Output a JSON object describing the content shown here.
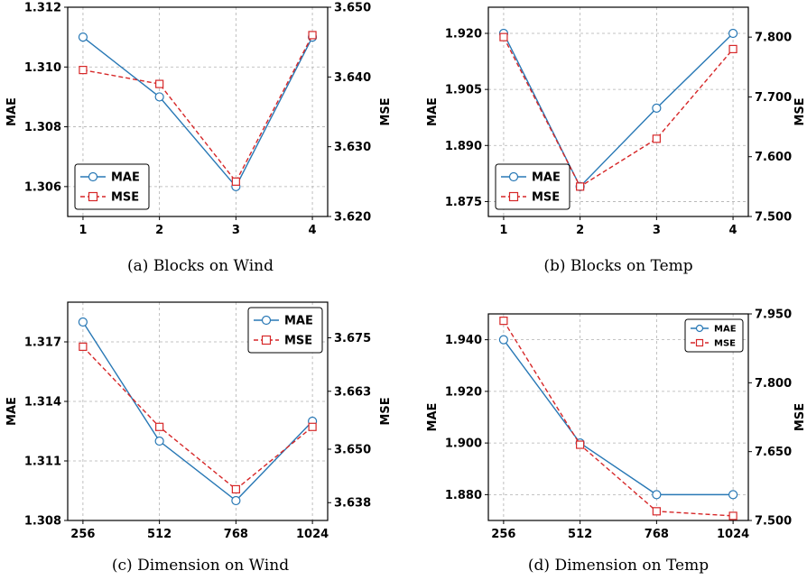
{
  "colors": {
    "mae": "#2878b5",
    "mse": "#d62728"
  },
  "chart_data": [
    {
      "type": "line",
      "caption": "(a)  Blocks on Wind",
      "x": [
        1,
        2,
        3,
        4
      ],
      "x_tick_labels": [
        "1",
        "2",
        "3",
        "4"
      ],
      "xlim": [
        0.8,
        4.2
      ],
      "ylabel": "MAE",
      "y2label": "MSE",
      "ylim": [
        1.305,
        1.312
      ],
      "y_ticks": [
        1.306,
        1.308,
        1.31,
        1.312
      ],
      "y_tick_labels": [
        "1.306",
        "1.308",
        "1.310",
        "1.312"
      ],
      "y2lim": [
        3.62,
        3.65
      ],
      "y2_ticks": [
        3.62,
        3.63,
        3.64,
        3.65
      ],
      "y2_tick_labels": [
        "3.620",
        "3.630",
        "3.640",
        "3.650"
      ],
      "grid": true,
      "legend": "lower-left",
      "legend_size": "large",
      "series": [
        {
          "name": "MAE",
          "axis": "left",
          "marker": "circle",
          "style": "solid",
          "values": [
            1.311,
            1.309,
            1.306,
            1.311
          ]
        },
        {
          "name": "MSE",
          "axis": "right",
          "marker": "square",
          "style": "dashed",
          "values": [
            3.641,
            3.639,
            3.625,
            3.646
          ]
        }
      ]
    },
    {
      "type": "line",
      "caption": "(b)  Blocks on Temp",
      "x": [
        1,
        2,
        3,
        4
      ],
      "x_tick_labels": [
        "1",
        "2",
        "3",
        "4"
      ],
      "xlim": [
        0.8,
        4.2
      ],
      "ylabel": "MAE",
      "y2label": "MSE",
      "ylim": [
        1.871,
        1.927
      ],
      "y_ticks": [
        1.875,
        1.89,
        1.905,
        1.92
      ],
      "y_tick_labels": [
        "1.875",
        "1.890",
        "1.905",
        "1.920"
      ],
      "y2lim": [
        7.5,
        7.85
      ],
      "y2_ticks": [
        7.5,
        7.6,
        7.7,
        7.8
      ],
      "y2_tick_labels": [
        "7.500",
        "7.600",
        "7.700",
        "7.800"
      ],
      "grid": true,
      "legend": "lower-left",
      "legend_size": "large",
      "series": [
        {
          "name": "MAE",
          "axis": "left",
          "marker": "circle",
          "style": "solid",
          "values": [
            1.92,
            1.879,
            1.9,
            1.92
          ]
        },
        {
          "name": "MSE",
          "axis": "right",
          "marker": "square",
          "style": "dashed",
          "values": [
            7.8,
            7.55,
            7.63,
            7.78
          ]
        }
      ]
    },
    {
      "type": "line",
      "caption": "(c)  Dimension on Wind",
      "x": [
        256,
        512,
        768,
        1024
      ],
      "x_tick_labels": [
        "256",
        "512",
        "768",
        "1024"
      ],
      "xlim": [
        205,
        1075
      ],
      "ylabel": "MAE",
      "y2label": "MSE",
      "ylim": [
        1.308,
        1.319
      ],
      "y_ticks": [
        1.308,
        1.311,
        1.314,
        1.317
      ],
      "y_tick_labels": [
        "1.308",
        "1.311",
        "1.314",
        "1.317"
      ],
      "y2lim": [
        3.634,
        3.683
      ],
      "y2_ticks": [
        3.638,
        3.65,
        3.663,
        3.675
      ],
      "y2_tick_labels": [
        "3.638",
        "3.650",
        "3.663",
        "3.675"
      ],
      "grid": true,
      "legend": "top-right",
      "legend_size": "large",
      "series": [
        {
          "name": "MAE",
          "axis": "left",
          "marker": "circle",
          "style": "solid",
          "values": [
            1.318,
            1.312,
            1.309,
            1.313
          ]
        },
        {
          "name": "MSE",
          "axis": "right",
          "marker": "square",
          "style": "dashed",
          "values": [
            3.673,
            3.655,
            3.641,
            3.655
          ]
        }
      ]
    },
    {
      "type": "line",
      "caption": "(d)  Dimension on Temp",
      "x": [
        256,
        512,
        768,
        1024
      ],
      "x_tick_labels": [
        "256",
        "512",
        "768",
        "1024"
      ],
      "xlim": [
        205,
        1075
      ],
      "ylabel": "MAE",
      "y2label": "MSE",
      "ylim": [
        1.87,
        1.95
      ],
      "y_ticks": [
        1.88,
        1.9,
        1.92,
        1.94
      ],
      "y_tick_labels": [
        "1.880",
        "1.900",
        "1.920",
        "1.940"
      ],
      "y2lim": [
        7.5,
        7.95
      ],
      "y2_ticks": [
        7.5,
        7.65,
        7.8,
        7.95
      ],
      "y2_tick_labels": [
        "7.500",
        "7.650",
        "7.800",
        "7.950"
      ],
      "grid": true,
      "legend": "top-right",
      "legend_size": "small",
      "series": [
        {
          "name": "MAE",
          "axis": "left",
          "marker": "circle",
          "style": "solid",
          "values": [
            1.94,
            1.9,
            1.88,
            1.88
          ]
        },
        {
          "name": "MSE",
          "axis": "right",
          "marker": "square",
          "style": "dashed",
          "values": [
            7.935,
            7.665,
            7.52,
            7.51
          ]
        }
      ]
    }
  ]
}
